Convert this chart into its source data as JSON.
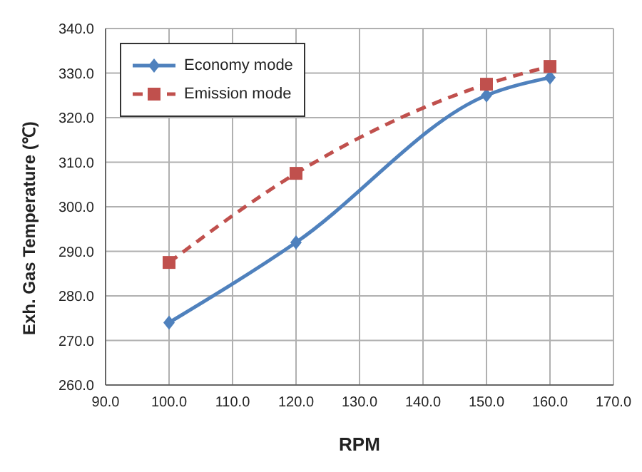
{
  "chart_data": {
    "type": "line",
    "xlabel": "RPM",
    "ylabel": "Exh. Gas Temperature (℃)",
    "x": [
      100,
      120,
      150,
      160
    ],
    "series": [
      {
        "name": "Economy mode",
        "color": "#4f81bd",
        "values": [
          274,
          292,
          325,
          329
        ],
        "marker": "diamond",
        "line_style": "solid"
      },
      {
        "name": "Emission mode",
        "color": "#c0504d",
        "values": [
          287.5,
          307.5,
          327.5,
          331.5
        ],
        "marker": "square",
        "line_style": "dashed"
      }
    ],
    "xlim": [
      90,
      170
    ],
    "xticks": [
      {
        "value": 90,
        "label": "90.0"
      },
      {
        "value": 100,
        "label": "100.0"
      },
      {
        "value": 110,
        "label": "110.0"
      },
      {
        "value": 120,
        "label": "120.0"
      },
      {
        "value": 130,
        "label": "130.0"
      },
      {
        "value": 140,
        "label": "140.0"
      },
      {
        "value": 150,
        "label": "150.0"
      },
      {
        "value": 160,
        "label": "160.0"
      },
      {
        "value": 170,
        "label": "170.0"
      }
    ],
    "ylim": [
      260,
      340
    ],
    "yticks": [
      {
        "value": 260,
        "label": "260.0"
      },
      {
        "value": 270,
        "label": "270.0"
      },
      {
        "value": 280,
        "label": "280.0"
      },
      {
        "value": 290,
        "label": "290.0"
      },
      {
        "value": 300,
        "label": "300.0"
      },
      {
        "value": 310,
        "label": "310.0"
      },
      {
        "value": 320,
        "label": "320.0"
      },
      {
        "value": 330,
        "label": "330.0"
      },
      {
        "value": 340,
        "label": "340.0"
      }
    ],
    "grid": true,
    "legend": "top left"
  }
}
